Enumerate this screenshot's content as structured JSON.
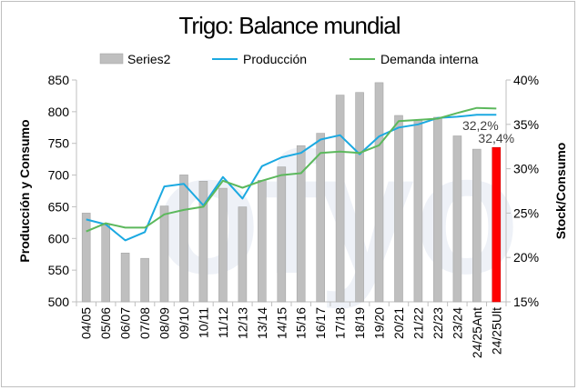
{
  "chart_data": {
    "type": "bar",
    "title": "Trigo: Balance mundial",
    "ylabel_left": "Producción y Consumo",
    "ylabel_right": "Stock/Consumo",
    "ylim_left": [
      500,
      850
    ],
    "yticks_left": [
      "500",
      "550",
      "600",
      "650",
      "700",
      "750",
      "800",
      "850"
    ],
    "ylim_right": [
      0.15,
      0.4
    ],
    "yticks_right": [
      "15%",
      "20%",
      "25%",
      "30%",
      "35%",
      "40%"
    ],
    "categories": [
      "04/05",
      "05/06",
      "06/07",
      "07/08",
      "08/09",
      "09/10",
      "10/11",
      "11/12",
      "12/13",
      "13/14",
      "14/15",
      "15/16",
      "16/17",
      "17/18",
      "18/19",
      "19/20",
      "20/21",
      "21/22",
      "22/23",
      "23/24",
      "24/25Ant",
      "24/25Ult"
    ],
    "bars": {
      "name": "Series2",
      "axis": "right",
      "color": "#bfbfbf",
      "highlight_color": "#ff0000",
      "values": [
        0.25,
        0.238,
        0.205,
        0.199,
        0.258,
        0.293,
        0.286,
        0.278,
        0.257,
        0.287,
        0.302,
        0.326,
        0.34,
        0.383,
        0.386,
        0.397,
        0.36,
        0.355,
        0.358,
        0.337,
        0.322,
        0.324
      ]
    },
    "series": [
      {
        "name": "Producción",
        "axis": "left",
        "color": "#1ba9e1",
        "values": [
          630,
          622,
          597,
          610,
          682,
          686,
          652,
          697,
          663,
          714,
          728,
          735,
          756,
          763,
          733,
          761,
          775,
          780,
          790,
          792,
          795,
          795
        ]
      },
      {
        "name": "Demanda interna",
        "axis": "left",
        "color": "#5cb85c",
        "values": [
          611,
          624,
          617,
          617,
          638,
          645,
          650,
          691,
          680,
          691,
          700,
          703,
          735,
          737,
          735,
          747,
          785,
          787,
          789,
          798,
          806,
          805
        ]
      }
    ],
    "data_labels": [
      {
        "category": "24/25Ant",
        "text": "32,2%"
      },
      {
        "category": "24/25Ult",
        "text": "32,4%"
      }
    ],
    "legend": {
      "position": "top",
      "items": [
        "Series2",
        "Producción",
        "Demanda interna"
      ]
    },
    "grid": false
  }
}
